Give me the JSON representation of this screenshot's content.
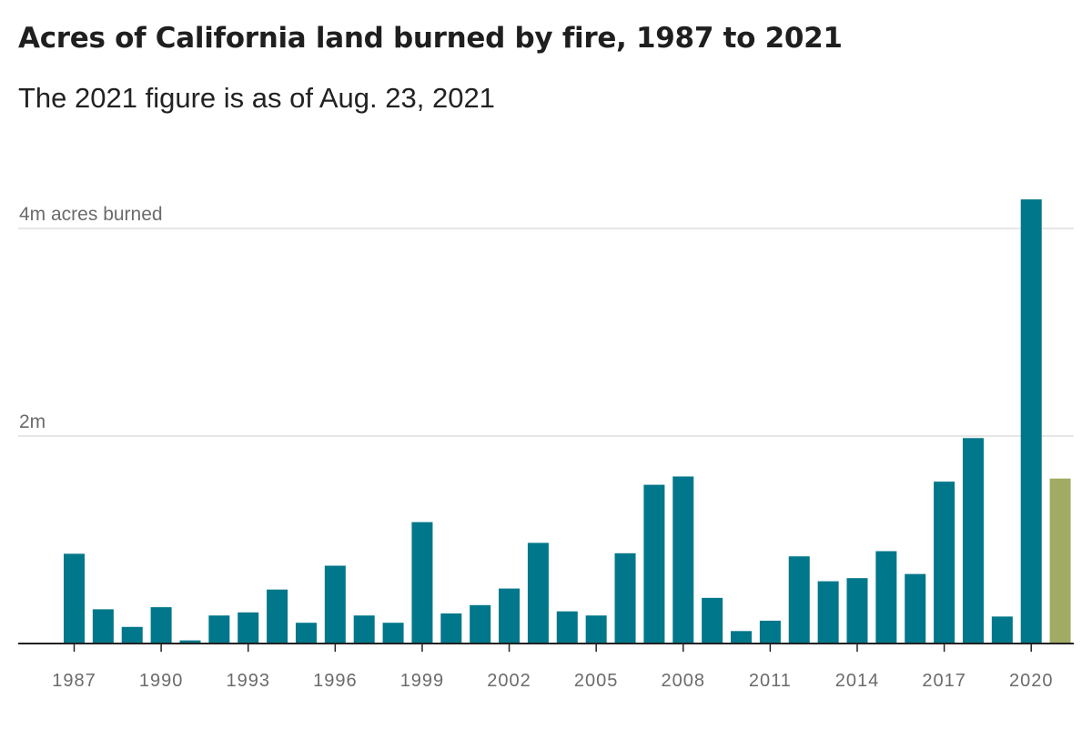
{
  "header": {
    "title": "Acres of California land burned by fire, 1987 to 2021",
    "subtitle": "The 2021 figure is as of Aug. 23, 2021"
  },
  "colors": {
    "bar": "#00778a",
    "highlight": "#a2ab63",
    "grid": "#dddddd",
    "axis": "#222222",
    "label": "#6b6b6b"
  },
  "chart_data": {
    "type": "bar",
    "title": "Acres of California land burned by fire, 1987 to 2021",
    "subtitle": "The 2021 figure is as of Aug. 23, 2021",
    "xlabel": "",
    "ylabel": "",
    "ylim": [
      0,
      4300000
    ],
    "grid": true,
    "y_gridlines": [
      {
        "value": 2000000,
        "label": "2m"
      },
      {
        "value": 4000000,
        "label": "4m acres burned"
      }
    ],
    "x_tick_labels": [
      "1987",
      "1990",
      "1993",
      "1996",
      "1999",
      "2002",
      "2005",
      "2008",
      "2011",
      "2014",
      "2017",
      "2020"
    ],
    "categories": [
      "1987",
      "1988",
      "1989",
      "1990",
      "1991",
      "1992",
      "1993",
      "1994",
      "1995",
      "1996",
      "1997",
      "1998",
      "1999",
      "2000",
      "2001",
      "2002",
      "2003",
      "2004",
      "2005",
      "2006",
      "2007",
      "2008",
      "2009",
      "2010",
      "2011",
      "2012",
      "2013",
      "2014",
      "2015",
      "2016",
      "2017",
      "2018",
      "2019",
      "2020",
      "2021"
    ],
    "values": [
      865000,
      330000,
      160000,
      350000,
      30000,
      270000,
      300000,
      520000,
      200000,
      750000,
      270000,
      200000,
      1170000,
      290000,
      370000,
      530000,
      970000,
      310000,
      270000,
      870000,
      1530000,
      1610000,
      440000,
      120000,
      220000,
      840000,
      600000,
      630000,
      890000,
      670000,
      1560000,
      1980000,
      260000,
      4280000,
      1590000
    ],
    "highlight_categories": [
      "2021"
    ]
  }
}
